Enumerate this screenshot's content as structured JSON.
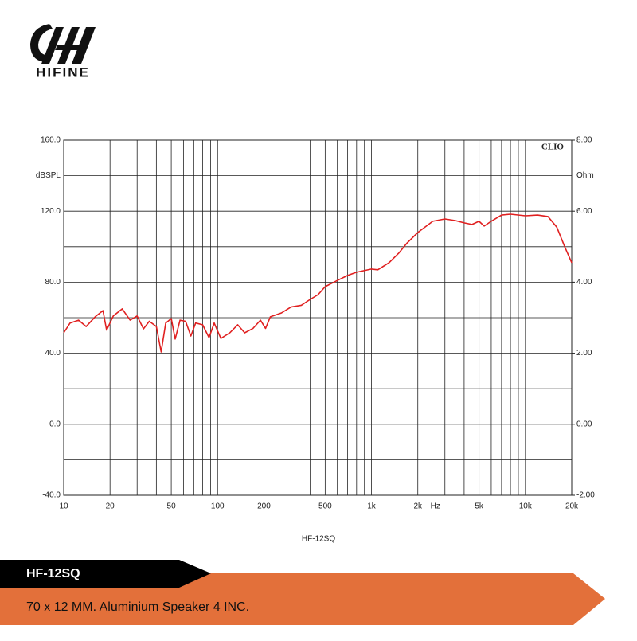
{
  "logo": "HIFINE",
  "banner": {
    "model": "HF-12SQ",
    "description": "70 x 12 MM. Aluminium Speaker 4 INC."
  },
  "chart_data": {
    "type": "line",
    "caption": "HF-12SQ",
    "brand": "CLIO",
    "y_label": "dBSPL",
    "y2_label": "Ohm",
    "x_unit": "Hz",
    "log_x": true,
    "grid": true,
    "xlim": [
      10,
      20000
    ],
    "xticks": [
      10,
      20,
      50,
      100,
      200,
      500,
      {
        "value": 1000,
        "label": "1k"
      },
      {
        "value": 2000,
        "label": "2k"
      },
      {
        "value": 5000,
        "label": "5k"
      },
      {
        "value": 10000,
        "label": "10k"
      },
      {
        "value": 20000,
        "label": "20k"
      }
    ],
    "xminor": [
      30,
      40,
      60,
      70,
      80,
      90,
      300,
      400,
      600,
      700,
      800,
      900,
      3000,
      4000,
      6000,
      7000,
      8000,
      9000
    ],
    "ylim": [
      -40,
      160
    ],
    "yticks": [
      {
        "value": -40,
        "label": "-40.0"
      },
      {
        "value": 0,
        "label": "0.0"
      },
      {
        "value": 40,
        "label": "40.0"
      },
      {
        "value": 80,
        "label": "80.0"
      },
      {
        "value": 120,
        "label": "120.0"
      },
      {
        "value": 160,
        "label": "160.0"
      }
    ],
    "yminor": [
      -20,
      20,
      60,
      100,
      140
    ],
    "y2lim": [
      -2,
      8
    ],
    "y2ticks": [
      {
        "value": -2,
        "label": "-2.00"
      },
      {
        "value": 0,
        "label": "0.00"
      },
      {
        "value": 2,
        "label": "2.00"
      },
      {
        "value": 4,
        "label": "4.00"
      },
      {
        "value": 6,
        "label": "6.00"
      },
      {
        "value": 8,
        "label": "8.00"
      }
    ],
    "series": [
      {
        "name": "SPL",
        "color": "#e02020",
        "x": [
          10,
          11,
          12.5,
          14,
          16,
          18,
          19,
          21,
          24,
          27,
          30,
          33,
          36,
          40,
          43,
          46,
          50,
          53,
          57,
          62,
          67,
          72,
          80,
          88,
          95,
          105,
          120,
          135,
          150,
          170,
          190,
          205,
          220,
          260,
          300,
          350,
          400,
          450,
          500,
          600,
          700,
          800,
          1000,
          1100,
          1300,
          1500,
          1700,
          2000,
          2500,
          3000,
          3500,
          4000,
          4500,
          5000,
          5400,
          6000,
          7000,
          8000,
          10000,
          12000,
          14000,
          16000,
          18000,
          20000
        ],
        "values": [
          51.5,
          57,
          58.6,
          55,
          60.5,
          64,
          53,
          61,
          65,
          58.6,
          61,
          53.7,
          58,
          55,
          40.7,
          57,
          59.5,
          48,
          58.6,
          58,
          49.7,
          57,
          56,
          48.8,
          57,
          48.3,
          51.5,
          56,
          51.5,
          54,
          58.6,
          54,
          60.5,
          62.7,
          66,
          67,
          70.3,
          73,
          77.5,
          81,
          83.8,
          85.6,
          87.4,
          87,
          91,
          96.3,
          102,
          108,
          114.3,
          115.6,
          114.7,
          113.4,
          112.5,
          114.3,
          111.6,
          114.3,
          117.8,
          118.3,
          117.4,
          117.8,
          117,
          111,
          100,
          91
        ]
      }
    ]
  }
}
